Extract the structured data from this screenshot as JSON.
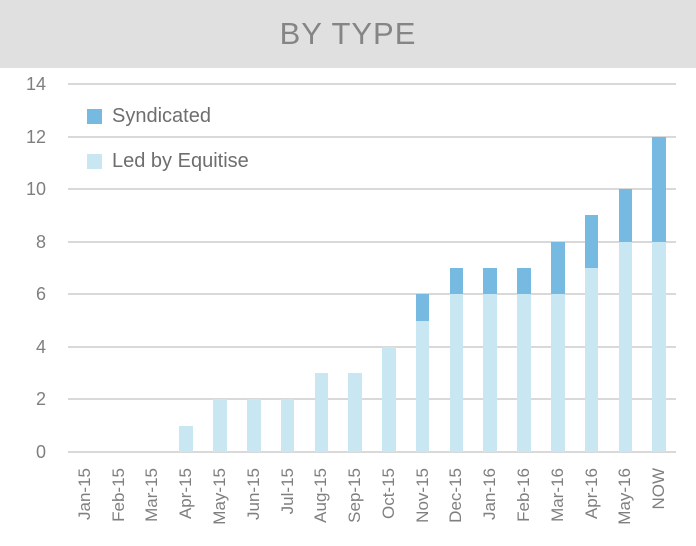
{
  "banner": {
    "label": "BY TYPE",
    "background": "#e0e0e0",
    "text_color": "#858585"
  },
  "colors": {
    "syndicated": "#76bae2",
    "led_by_equitise": "#c9e7f2",
    "gridline": "#d9d9d9",
    "axis_text": "#7f7f7f",
    "legend_text": "#6e6e6e"
  },
  "chart_data": {
    "type": "bar",
    "stacked": true,
    "title": "BY TYPE",
    "categories": [
      "Jan-15",
      "Feb-15",
      "Mar-15",
      "Apr-15",
      "May-15",
      "Jun-15",
      "Jul-15",
      "Aug-15",
      "Sep-15",
      "Oct-15",
      "Nov-15",
      "Dec-15",
      "Jan-16",
      "Feb-16",
      "Mar-16",
      "Apr-16",
      "May-16",
      "NOW"
    ],
    "series": [
      {
        "name": "Syndicated",
        "color": "#76bae2",
        "values": [
          0,
          0,
          0,
          0,
          0,
          0,
          0,
          0,
          0,
          0,
          1,
          1,
          1,
          1,
          2,
          2,
          2,
          4
        ]
      },
      {
        "name": "Led by Equitise",
        "color": "#c9e7f2",
        "values": [
          0,
          0,
          0,
          1,
          2,
          2,
          2,
          3,
          3,
          4,
          5,
          6,
          6,
          6,
          6,
          7,
          8,
          8
        ]
      }
    ],
    "stack_order_bottom_to_top": [
      "Led by Equitise",
      "Syndicated"
    ],
    "xlabel": "",
    "ylabel": "",
    "ylim": [
      0,
      14
    ],
    "y_ticks": [
      0,
      2,
      4,
      6,
      8,
      10,
      12,
      14
    ],
    "grid": true,
    "legend_position": "top-left",
    "x_tick_rotation": -90
  }
}
